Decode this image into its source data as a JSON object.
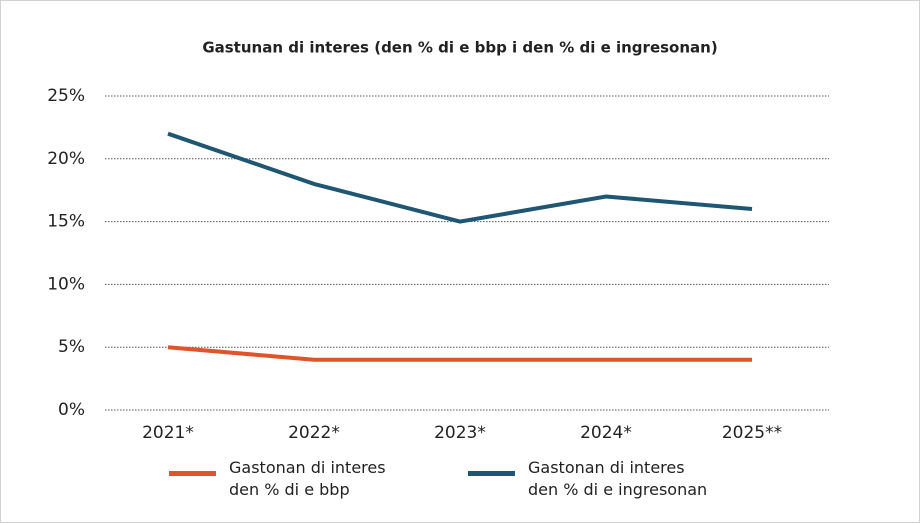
{
  "chart_data": {
    "type": "line",
    "title": "Gastunan di interes (den % di e bbp i den % di e ingresonan)",
    "categories": [
      "2021*",
      "2022*",
      "2023*",
      "2024*",
      "2025**"
    ],
    "series": [
      {
        "name": "Gastonan di interes\nden % di e bbp",
        "color": "#e0542a",
        "values": [
          5,
          4,
          4,
          4,
          4
        ]
      },
      {
        "name": "Gastonan di interes\nden % di e ingresonan",
        "color": "#1f5673",
        "values": [
          22,
          18,
          15,
          17,
          16
        ]
      }
    ],
    "ylim": [
      0,
      25
    ],
    "yticks": [
      {
        "value": 0,
        "label": "0%"
      },
      {
        "value": 5,
        "label": "5%"
      },
      {
        "value": 10,
        "label": "10%"
      },
      {
        "value": 15,
        "label": "15%"
      },
      {
        "value": 20,
        "label": "20%"
      },
      {
        "value": 25,
        "label": "25%"
      }
    ],
    "grid": true
  }
}
